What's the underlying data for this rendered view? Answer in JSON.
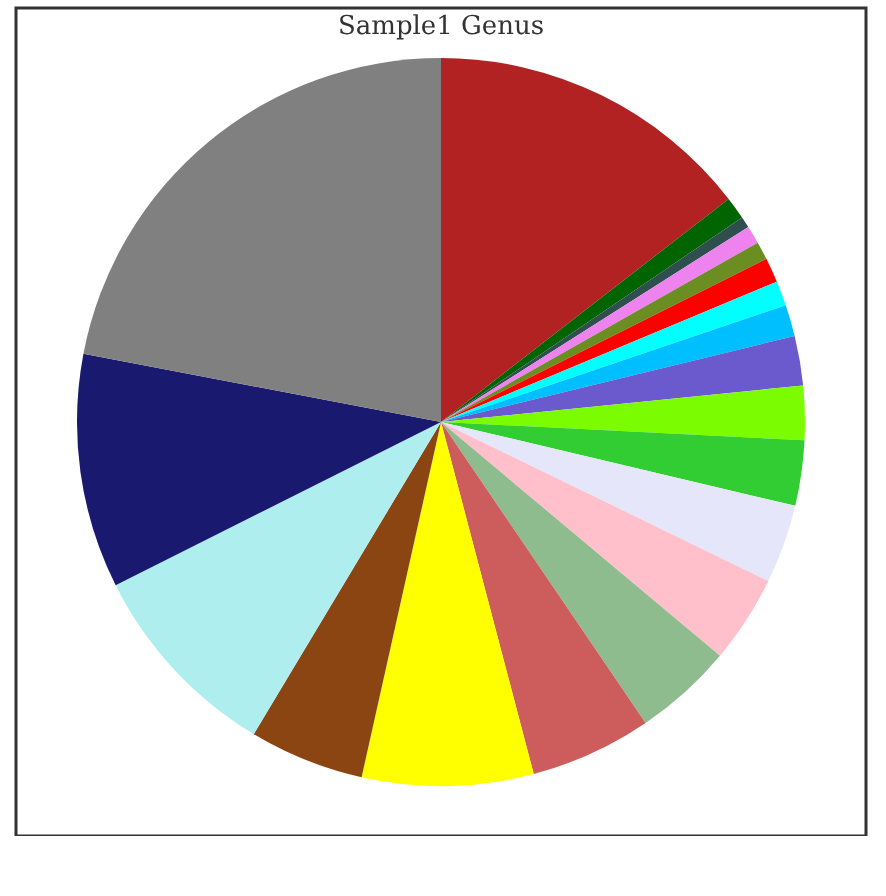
{
  "chart_data": {
    "type": "pie",
    "title": "Sample1 Genus",
    "categories": [
      null,
      null,
      null,
      null,
      null,
      null,
      null,
      null,
      null,
      null,
      null,
      null,
      null,
      null,
      null,
      null,
      null,
      null,
      null,
      null
    ],
    "values": [
      14.5,
      1.0,
      0.5,
      0.8,
      0.8,
      1.1,
      1.1,
      1.4,
      2.2,
      2.4,
      2.9,
      3.5,
      3.9,
      4.4,
      5.4,
      7.6,
      5.1,
      9.0,
      10.4,
      22.0
    ],
    "colors": [
      "#b22222",
      "#006400",
      "#2f4f4f",
      "#ee82ee",
      "#6b8e23",
      "#ff0000",
      "#00ffff",
      "#00bfff",
      "#6a5acd",
      "#7cfc00",
      "#32cd32",
      "#e6e6fa",
      "#ffc0cb",
      "#8fbc8f",
      "#cd5c5c",
      "#ffff00",
      "#8b4513",
      "#afeeee",
      "#191970",
      "#808080"
    ]
  }
}
